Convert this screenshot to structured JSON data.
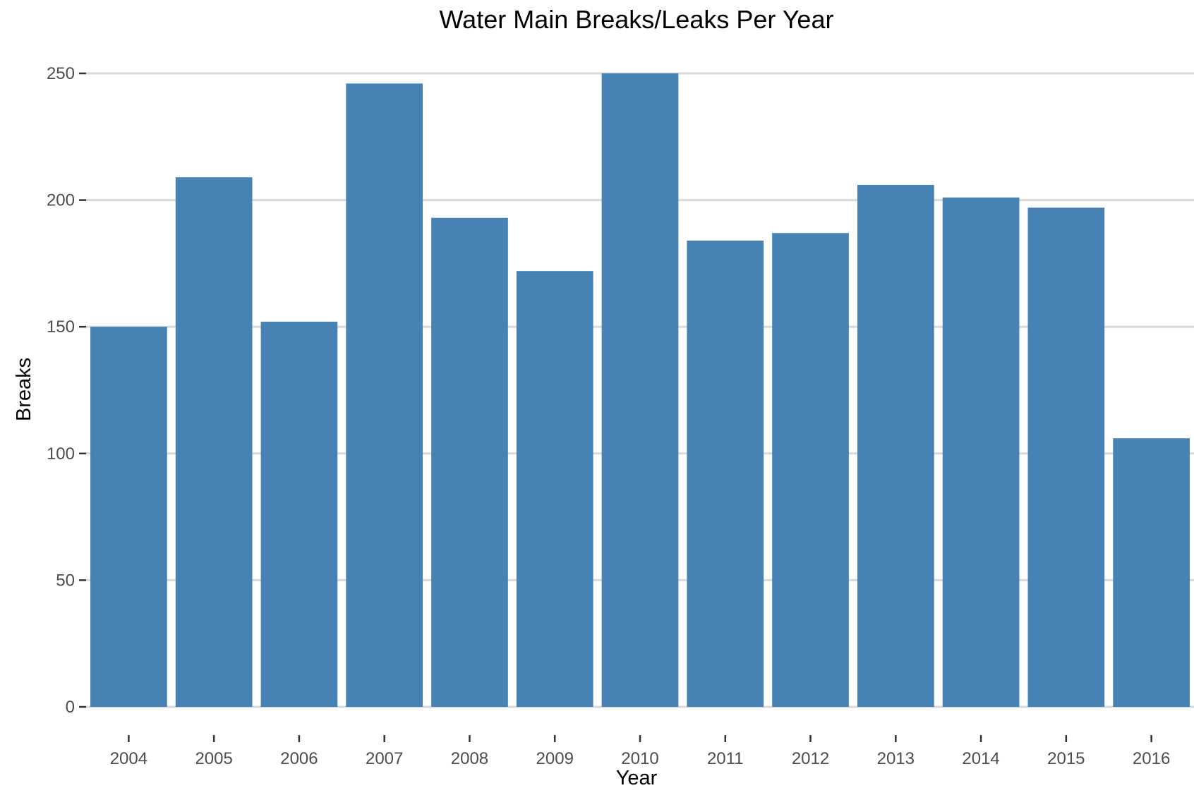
{
  "chart_data": {
    "type": "bar",
    "title": "Water Main Breaks/Leaks Per Year",
    "xlabel": "Year",
    "ylabel": "Breaks",
    "categories": [
      "2004",
      "2005",
      "2006",
      "2007",
      "2008",
      "2009",
      "2010",
      "2011",
      "2012",
      "2013",
      "2014",
      "2015",
      "2016"
    ],
    "values": [
      150,
      209,
      152,
      246,
      193,
      172,
      250,
      184,
      187,
      206,
      201,
      197,
      106
    ],
    "ylim": [
      0,
      250
    ],
    "yticks": [
      0,
      50,
      100,
      150,
      200,
      250
    ],
    "grid": true,
    "legend": "none",
    "bar_color": "#4682b4",
    "grid_color": "#d9d9d9",
    "background": "#ffffff"
  }
}
